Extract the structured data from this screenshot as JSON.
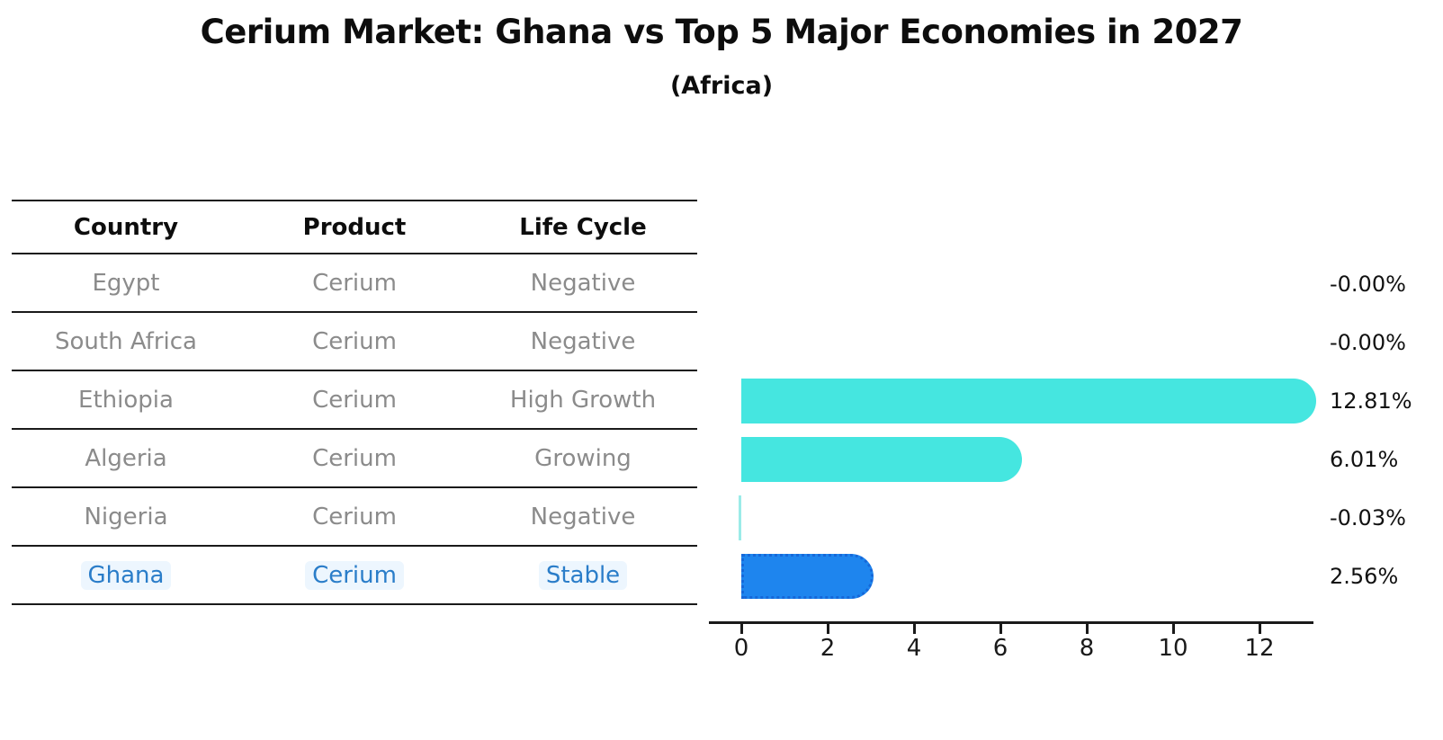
{
  "title": "Cerium Market: Ghana vs Top 5 Major Economies in 2027",
  "subtitle": "(Africa)",
  "table": {
    "headers": {
      "country": "Country",
      "product": "Product",
      "life_cycle": "Life Cycle"
    },
    "rows": [
      {
        "country": "Egypt",
        "product": "Cerium",
        "life_cycle": "Negative",
        "highlight": false
      },
      {
        "country": "South Africa",
        "product": "Cerium",
        "life_cycle": "Negative",
        "highlight": false
      },
      {
        "country": "Ethiopia",
        "product": "Cerium",
        "life_cycle": "High Growth",
        "highlight": false
      },
      {
        "country": "Algeria",
        "product": "Cerium",
        "life_cycle": "Growing",
        "highlight": false
      },
      {
        "country": "Nigeria",
        "product": "Cerium",
        "life_cycle": "Negative",
        "highlight": false
      },
      {
        "country": "Ghana",
        "product": "Cerium",
        "life_cycle": "Stable",
        "highlight": true
      }
    ]
  },
  "chart_data": {
    "type": "bar",
    "orientation": "horizontal",
    "categories": [
      "Egypt",
      "South Africa",
      "Ethiopia",
      "Algeria",
      "Nigeria",
      "Ghana"
    ],
    "values": [
      -0.0,
      -0.0,
      12.81,
      6.01,
      -0.03,
      2.56
    ],
    "value_labels": [
      "-0.00%",
      "-0.00%",
      "12.81%",
      "6.01%",
      "-0.03%",
      "2.56%"
    ],
    "xticks": [
      0,
      2,
      4,
      6,
      8,
      10,
      12
    ],
    "xlim": [
      -0.75,
      13.25
    ],
    "highlight_index": 5,
    "grid": false,
    "legend": false,
    "colors": {
      "bar": "#45E6E0",
      "bar_sliver": "#9BEBE8",
      "highlight_bar": "#1E85EE",
      "highlight_border": "#1668D9",
      "text": "#111111",
      "gray_text": "#8b8b8b",
      "blue_text": "#2a7dc9"
    }
  }
}
